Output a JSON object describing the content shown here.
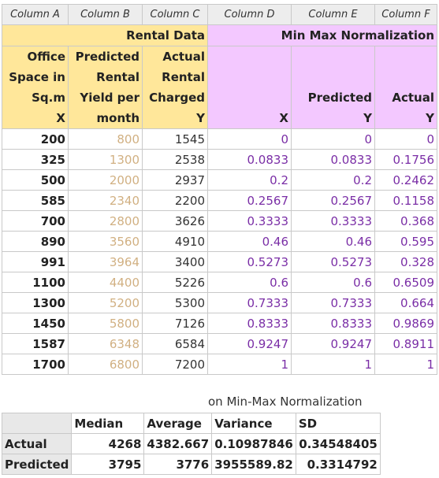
{
  "columns": [
    "Column A",
    "Column B",
    "Column C",
    "Column D",
    "Column E",
    "Column F"
  ],
  "section_titles": {
    "rental": "Rental Data",
    "minmax": "Min Max Normalization"
  },
  "headers": {
    "a": [
      "Office",
      "Space in",
      "Sq.m",
      "X"
    ],
    "b": [
      "Predicted",
      "Rental",
      "Yield per",
      "month"
    ],
    "c": [
      "Actual",
      "Rental",
      "Charged",
      "Y"
    ],
    "d": [
      "X"
    ],
    "e": [
      "Predicted",
      "Y"
    ],
    "f": [
      "Actual",
      "Y"
    ]
  },
  "rows": [
    [
      "200",
      "800",
      "1545",
      "0",
      "0",
      "0"
    ],
    [
      "325",
      "1300",
      "2538",
      "0.0833",
      "0.0833",
      "0.1756"
    ],
    [
      "500",
      "2000",
      "2937",
      "0.2",
      "0.2",
      "0.2462"
    ],
    [
      "585",
      "2340",
      "2200",
      "0.2567",
      "0.2567",
      "0.1158"
    ],
    [
      "700",
      "2800",
      "3626",
      "0.3333",
      "0.3333",
      "0.368"
    ],
    [
      "890",
      "3560",
      "4910",
      "0.46",
      "0.46",
      "0.595"
    ],
    [
      "991",
      "3964",
      "3400",
      "0.5273",
      "0.5273",
      "0.328"
    ],
    [
      "1100",
      "4400",
      "5226",
      "0.6",
      "0.6",
      "0.6509"
    ],
    [
      "1300",
      "5200",
      "5300",
      "0.7333",
      "0.7333",
      "0.664"
    ],
    [
      "1450",
      "5800",
      "7126",
      "0.8333",
      "0.8333",
      "0.9869"
    ],
    [
      "1587",
      "6348",
      "6584",
      "0.9247",
      "0.9247",
      "0.8911"
    ],
    [
      "1700",
      "6800",
      "7200",
      "1",
      "1",
      "1"
    ]
  ],
  "caption": "on Min-Max Normalization",
  "stats": {
    "headers": [
      "Median",
      "Average",
      "Variance",
      "SD"
    ],
    "rows": [
      {
        "label": "Actual",
        "values": [
          "4268",
          "4382.667",
          "0.10987846",
          "0.34548405"
        ]
      },
      {
        "label": "Predicted",
        "values": [
          "3795",
          "3776",
          "3955589.82",
          "0.3314792"
        ]
      }
    ]
  }
}
